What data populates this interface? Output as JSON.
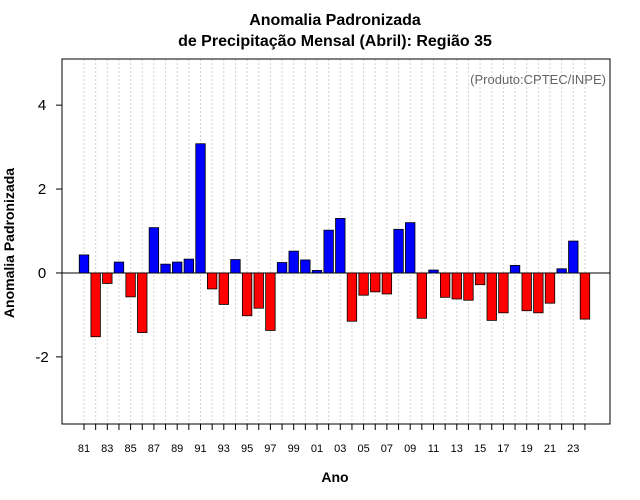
{
  "chart_data": {
    "type": "bar",
    "title": "Anomalia Padronizada",
    "subtitle": "de Precipitação Mensal (Abril): Região 35",
    "xlabel": "Ano",
    "ylabel": "Anomalia Padronizada",
    "annotation": "(Produto:CPTEC/INPE)",
    "ylim": [
      -3.6,
      5.1
    ],
    "yticks": [
      -2,
      0,
      2,
      4
    ],
    "ytick_labels": [
      "-2",
      "0",
      "2",
      "4"
    ],
    "xtick_labels": [
      "81",
      "83",
      "85",
      "87",
      "89",
      "91",
      "93",
      "95",
      "97",
      "99",
      "01",
      "03",
      "05",
      "07",
      "09",
      "11",
      "13",
      "15",
      "17",
      "19",
      "21",
      "23"
    ],
    "categories": [
      "1981",
      "1982",
      "1983",
      "1984",
      "1985",
      "1986",
      "1987",
      "1988",
      "1989",
      "1990",
      "1991",
      "1992",
      "1993",
      "1994",
      "1995",
      "1996",
      "1997",
      "1998",
      "1999",
      "2000",
      "2001",
      "2002",
      "2003",
      "2004",
      "2005",
      "2006",
      "2007",
      "2008",
      "2009",
      "2010",
      "2011",
      "2012",
      "2013",
      "2014",
      "2015",
      "2016",
      "2017",
      "2018",
      "2019",
      "2020",
      "2021",
      "2022",
      "2023",
      "2024"
    ],
    "values": [
      0.43,
      -1.52,
      -0.25,
      0.26,
      -0.57,
      -1.42,
      1.08,
      0.21,
      0.26,
      0.33,
      3.08,
      -0.38,
      -0.75,
      0.32,
      -1.02,
      -0.84,
      -1.37,
      0.25,
      0.52,
      0.31,
      0.06,
      1.02,
      1.3,
      -1.15,
      -0.53,
      -0.45,
      -0.5,
      1.04,
      1.2,
      -1.08,
      0.07,
      -0.58,
      -0.62,
      -0.65,
      -0.28,
      -1.13,
      -0.95,
      0.18,
      -0.9,
      -0.95,
      -0.72,
      0.1,
      0.76,
      -1.1
    ],
    "colors": {
      "positive": "#0000ff",
      "negative": "#ff0000",
      "gridline": "#d3d3d3",
      "zero_line": "#000000"
    },
    "grid": true,
    "zero_line": true
  }
}
